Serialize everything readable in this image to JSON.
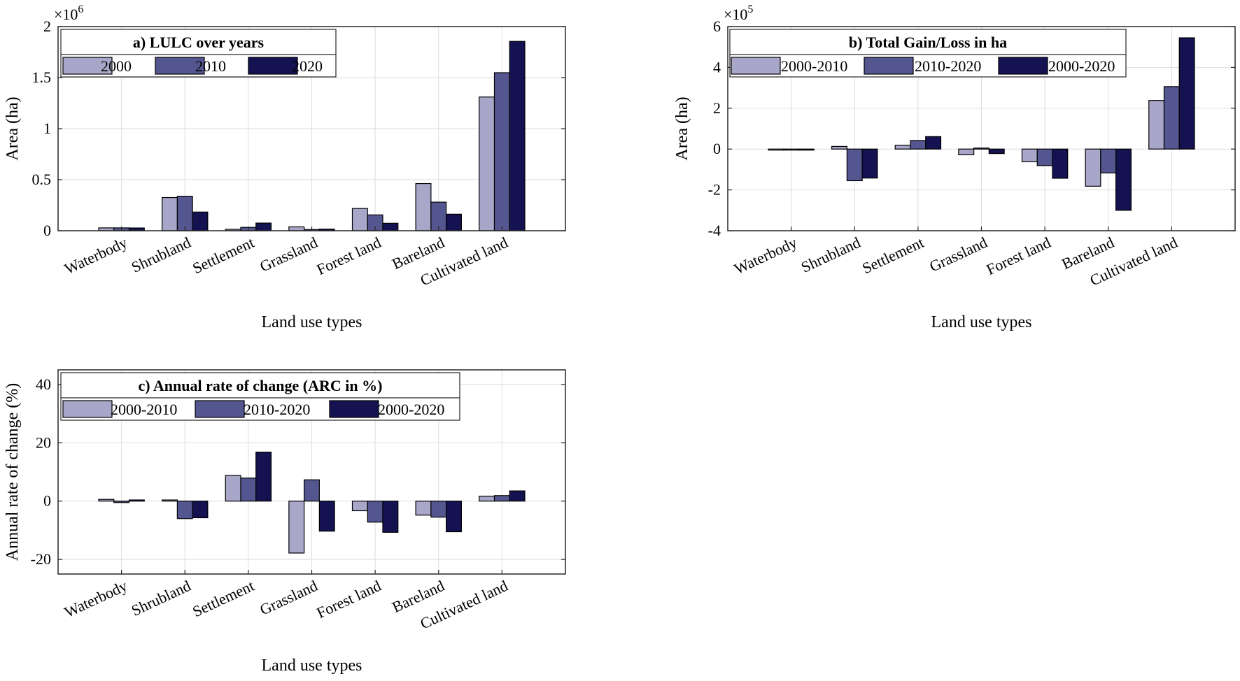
{
  "colors": {
    "series1": "#a9a7c9",
    "series2": "#54568f",
    "series3": "#141250"
  },
  "chart_data": [
    {
      "id": "a",
      "type": "bar",
      "title": "a) LULC over years",
      "categories": [
        "Waterbody",
        "Shrubland",
        "Settlement",
        "Grassland",
        "Forest land",
        "Bareland",
        "Cultivated land"
      ],
      "series": [
        {
          "name": "2000",
          "values": [
            0.028,
            0.325,
            0.014,
            0.038,
            0.218,
            0.462,
            1.31
          ]
        },
        {
          "name": "2010",
          "values": [
            0.028,
            0.338,
            0.033,
            0.012,
            0.155,
            0.28,
            1.548
          ]
        },
        {
          "name": "2020",
          "values": [
            0.027,
            0.183,
            0.075,
            0.016,
            0.073,
            0.162,
            1.855
          ]
        }
      ],
      "xlabel": "Land use types",
      "ylabel": "Area (ha)",
      "ylim": [
        0,
        2
      ],
      "yticks": [
        0,
        0.5,
        1,
        1.5,
        2
      ],
      "ytick_labels": [
        "0",
        "0.5",
        "1",
        "1.5",
        "2"
      ],
      "exponent_base": "×10",
      "exponent_power": "6",
      "grid": true,
      "legend_placement": "top-left"
    },
    {
      "id": "b",
      "type": "bar",
      "title": "b) Total Gain/Loss in ha",
      "categories": [
        "Waterbody",
        "Shrubland",
        "Settlement",
        "Grassland",
        "Forest land",
        "Bareland",
        "Cultivated land"
      ],
      "series": [
        {
          "name": "2000-2010",
          "values": [
            0.0,
            0.13,
            0.19,
            -0.28,
            -0.62,
            -1.82,
            2.38
          ]
        },
        {
          "name": "2010-2020",
          "values": [
            -0.02,
            -1.55,
            0.42,
            0.05,
            -0.81,
            -1.17,
            3.06
          ]
        },
        {
          "name": "2000-2020",
          "values": [
            -0.01,
            -1.42,
            0.61,
            -0.22,
            -1.43,
            -3.0,
            5.45
          ]
        }
      ],
      "xlabel": "Land use types",
      "ylabel": "Area (ha)",
      "ylim": [
        -4,
        6
      ],
      "yticks": [
        -4,
        -2,
        0,
        2,
        4,
        6
      ],
      "ytick_labels": [
        "-4",
        "-2",
        "0",
        "2",
        "4",
        "6"
      ],
      "exponent_base": "×10",
      "exponent_power": "5",
      "grid": true,
      "legend_placement": "top-left"
    },
    {
      "id": "c",
      "type": "bar",
      "title": "c) Annual rate of change (ARC in %)",
      "categories": [
        "Waterbody",
        "Shrubland",
        "Settlement",
        "Grassland",
        "Forest land",
        "Bareland",
        "Cultivated land"
      ],
      "series": [
        {
          "name": "2000-2010",
          "values": [
            0.6,
            0.4,
            8.8,
            -17.8,
            -3.3,
            -4.8,
            1.7
          ]
        },
        {
          "name": "2010-2020",
          "values": [
            -0.5,
            -6.0,
            7.9,
            7.3,
            -7.2,
            -5.5,
            1.9
          ]
        },
        {
          "name": "2000-2020",
          "values": [
            0.4,
            -5.7,
            16.8,
            -10.3,
            -10.7,
            -10.5,
            3.5
          ]
        }
      ],
      "xlabel": "Land use types",
      "ylabel": "Annual rate of change (%)",
      "ylim": [
        -25,
        45
      ],
      "yticks": [
        -20,
        0,
        20,
        40
      ],
      "ytick_labels": [
        "-20",
        "0",
        "20",
        "40"
      ],
      "grid": true,
      "legend_placement": "top-left"
    }
  ]
}
